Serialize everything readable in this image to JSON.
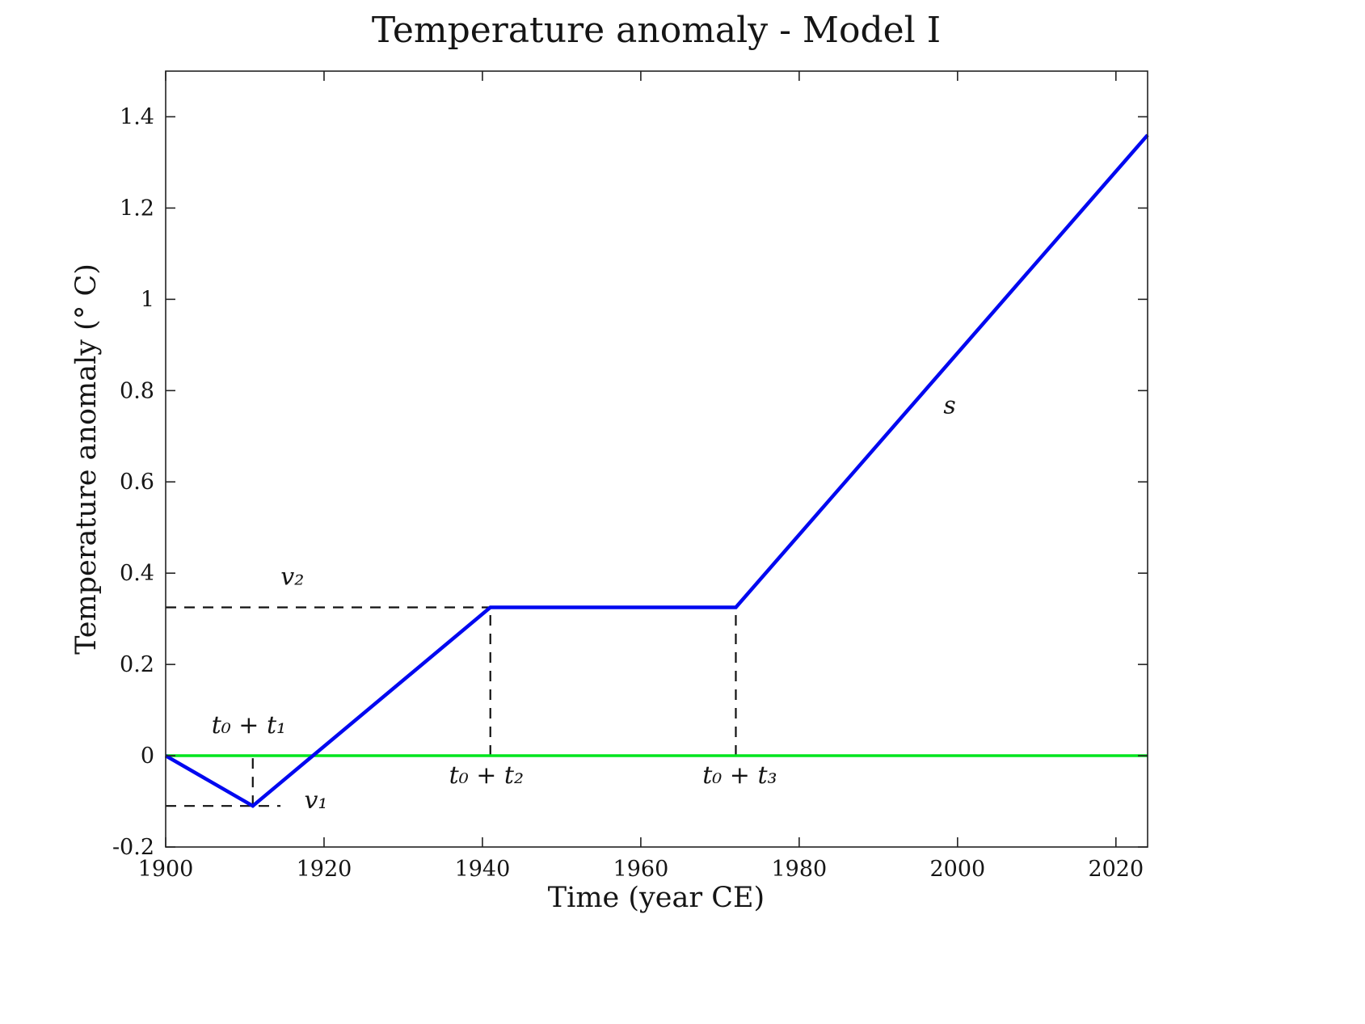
{
  "chart_data": {
    "type": "line",
    "title": "Temperature anomaly - Model I",
    "xlabel": "Time (year CE)",
    "ylabel": "Temperature anomaly (° C)",
    "xlim": [
      1900,
      2024
    ],
    "ylim": [
      -0.2,
      1.5
    ],
    "grid": false,
    "legend": null,
    "xticks": {
      "values": [
        1900,
        1920,
        1940,
        1960,
        1980,
        2000,
        2020
      ],
      "labels": [
        "1900",
        "1920",
        "1940",
        "1960",
        "1980",
        "2000",
        "2020"
      ]
    },
    "yticks": {
      "values": [
        -0.2,
        0,
        0.2,
        0.4,
        0.6,
        0.8,
        1,
        1.2,
        1.4
      ],
      "labels": [
        "-0.2",
        "0",
        "0.2",
        "0.4",
        "0.6",
        "0.8",
        "1",
        "1.2",
        "1.4"
      ]
    },
    "series": [
      {
        "name": "temperature-model",
        "color": "#0008f0",
        "line_width": 4.5,
        "x": [
          1900,
          1911,
          1941,
          1972,
          2024
        ],
        "y": [
          0,
          -0.11,
          0.325,
          0.325,
          1.36
        ]
      },
      {
        "name": "zero-baseline",
        "color": "#00e51e",
        "line_width": 3.5,
        "x": [
          1900,
          2024
        ],
        "y": [
          0,
          0
        ]
      }
    ],
    "guides": [
      {
        "name": "v2-level-dash",
        "x": [
          1900,
          1941
        ],
        "y": [
          0.325,
          0.325
        ]
      },
      {
        "name": "t2-time-dash",
        "x": [
          1941,
          1941
        ],
        "y": [
          0,
          0.325
        ]
      },
      {
        "name": "t3-time-dash",
        "x": [
          1972,
          1972
        ],
        "y": [
          0,
          0.325
        ]
      },
      {
        "name": "t1-time-dash",
        "x": [
          1911,
          1911
        ],
        "y": [
          -0.11,
          0
        ]
      },
      {
        "name": "v1-level-dash",
        "x": [
          1900,
          1914.5
        ],
        "y": [
          -0.11,
          -0.11
        ]
      }
    ],
    "annotations": [
      {
        "name": "label-t0-plus-t1",
        "text": "t₀ + t₁",
        "x": 1910.5,
        "y": 0.05,
        "anchor": "middle"
      },
      {
        "name": "label-v1",
        "text": "v₁",
        "x": 1917.5,
        "y": -0.115,
        "anchor": "start"
      },
      {
        "name": "label-v2",
        "text": "v₂",
        "x": 1916,
        "y": 0.375,
        "anchor": "middle"
      },
      {
        "name": "label-t0-plus-t2",
        "text": "t₀ + t₂",
        "x": 1940.5,
        "y": -0.06,
        "anchor": "middle"
      },
      {
        "name": "label-t0-plus-t3",
        "text": "t₀ + t₃",
        "x": 1972.5,
        "y": -0.06,
        "anchor": "middle"
      },
      {
        "name": "label-s",
        "text": "s",
        "x": 1999,
        "y": 0.75,
        "anchor": "middle"
      }
    ]
  }
}
